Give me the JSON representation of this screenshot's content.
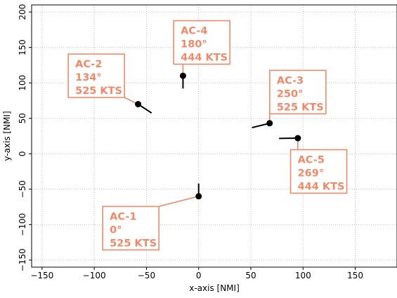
{
  "chart_data": {
    "type": "scatter",
    "title": "",
    "xlabel": "x-axis [NMI]",
    "ylabel": "y-axis [NMI]",
    "xlim": [
      -160,
      190
    ],
    "ylim": [
      -160,
      210
    ],
    "xticks": [
      -150,
      -100,
      -50,
      0,
      50,
      100,
      150
    ],
    "yticks": [
      -150,
      -100,
      -50,
      0,
      50,
      100,
      150,
      200
    ],
    "xtick_labels": [
      "−150",
      "−100",
      "−50",
      "0",
      "50",
      "100",
      "150"
    ],
    "ytick_labels": [
      "−150",
      "−100",
      "−50",
      "0",
      "50",
      "100",
      "150",
      "200"
    ],
    "grid": true,
    "grid_style": "dotted",
    "colors": {
      "marker": "#000000",
      "label": "#f0896a",
      "grid": "#b0b0b0",
      "axis": "#000000"
    },
    "aircraft": [
      {
        "id": "AC-1",
        "x": 0,
        "y": -60,
        "heading": "0°",
        "speed": "525 KTS",
        "heading_deg": 0,
        "label_x": -65,
        "label_y": -105
      },
      {
        "id": "AC-2",
        "x": -58,
        "y": 70,
        "heading": "134°",
        "speed": "525 KTS",
        "heading_deg": 134,
        "label_x": -98,
        "label_y": 110
      },
      {
        "id": "AC-3",
        "x": 68,
        "y": 43,
        "heading": "250°",
        "speed": "525 KTS",
        "heading_deg": 250,
        "label_x": 95,
        "label_y": 87
      },
      {
        "id": "AC-4",
        "x": -15,
        "y": 110,
        "heading": "180°",
        "speed": "444 KTS",
        "heading_deg": 180,
        "label_x": 3,
        "label_y": 157
      },
      {
        "id": "AC-5",
        "x": 95,
        "y": 22,
        "heading": "269°",
        "speed": "444 KTS",
        "heading_deg": 269,
        "label_x": 115,
        "label_y": -25
      }
    ]
  }
}
